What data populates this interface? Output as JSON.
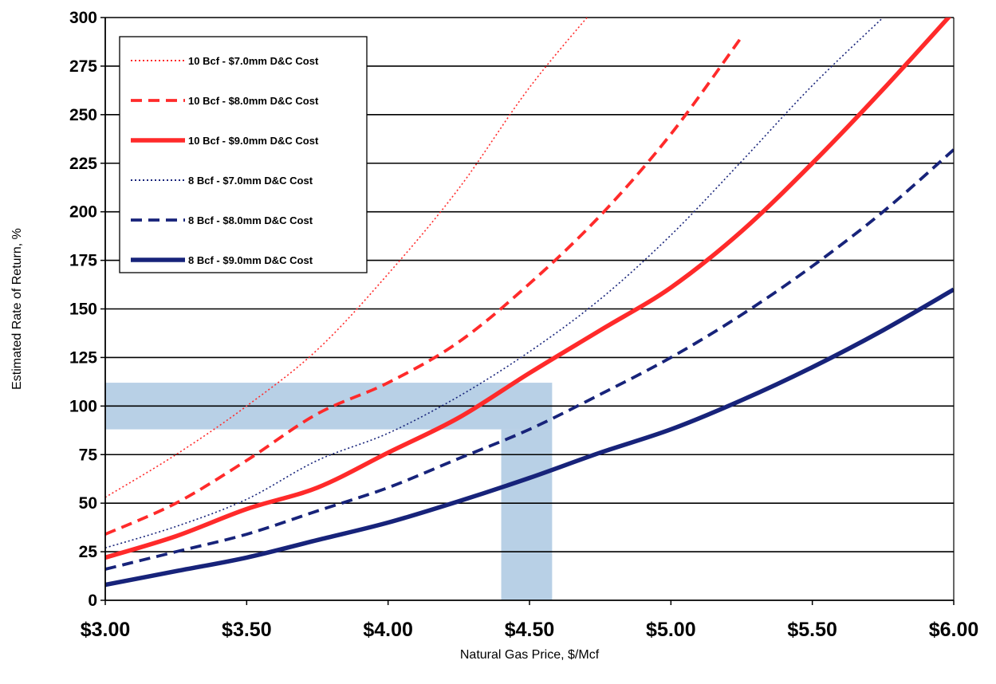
{
  "chart_data": {
    "type": "line",
    "xlabel": "Natural Gas Price, $/Mcf",
    "ylabel": "Estimated Rate of Return, %",
    "xlim": [
      3.0,
      6.0
    ],
    "ylim": [
      0,
      300
    ],
    "x_ticks": [
      3.0,
      3.5,
      4.0,
      4.5,
      5.0,
      5.5,
      6.0
    ],
    "x_tick_labels": [
      "$3.00",
      "$3.50",
      "$4.00",
      "$4.50",
      "$5.00",
      "$5.50",
      "$6.00"
    ],
    "y_ticks": [
      0,
      25,
      50,
      75,
      100,
      125,
      150,
      175,
      200,
      225,
      250,
      275,
      300
    ],
    "y_tick_labels": [
      "0",
      "25",
      "50",
      "75",
      "100",
      "125",
      "150",
      "175",
      "200",
      "225",
      "250",
      "275",
      "300"
    ],
    "grid": "horizontal",
    "legend_position": "top-left",
    "highlight": {
      "x_range": [
        4.4,
        4.58
      ],
      "y_range": [
        88,
        112
      ],
      "color": "#b8d0e6"
    },
    "x": [
      3.0,
      3.25,
      3.5,
      3.75,
      4.0,
      4.25,
      4.5,
      4.75,
      5.0,
      5.25,
      5.5,
      5.75,
      6.0
    ],
    "series": [
      {
        "name": "10 Bcf - $7.0mm D&C Cost",
        "color": "#ff2a2a",
        "style": "dotted",
        "values": [
          53,
          75,
          100,
          129,
          168,
          212,
          264,
          308,
          null,
          null,
          null,
          null,
          null
        ]
      },
      {
        "name": "10 Bcf - $8.0mm D&C Cost",
        "color": "#ff2a2a",
        "style": "dashed",
        "values": [
          34,
          50,
          72,
          96,
          112,
          133,
          163,
          198,
          240,
          290,
          null,
          null,
          null
        ]
      },
      {
        "name": "10 Bcf - $9.0mm D&C Cost",
        "color": "#ff2a2a",
        "style": "solid",
        "values": [
          22,
          33,
          47,
          58,
          76,
          94,
          117,
          139,
          161,
          190,
          225,
          263,
          303
        ]
      },
      {
        "name": "8 Bcf - $7.0mm D&C Cost",
        "color": "#17237a",
        "style": "dotted",
        "values": [
          27,
          38,
          52,
          72,
          86,
          105,
          128,
          155,
          188,
          226,
          265,
          300,
          null
        ]
      },
      {
        "name": "8 Bcf - $8.0mm D&C Cost",
        "color": "#17237a",
        "style": "dashed",
        "values": [
          16,
          25,
          34,
          46,
          58,
          73,
          88,
          106,
          125,
          147,
          172,
          200,
          232
        ]
      },
      {
        "name": "8 Bcf - $9.0mm D&C Cost",
        "color": "#17237a",
        "style": "solid",
        "values": [
          8,
          15,
          22,
          31,
          40,
          51,
          63,
          76,
          88,
          103,
          120,
          139,
          160
        ]
      }
    ]
  }
}
